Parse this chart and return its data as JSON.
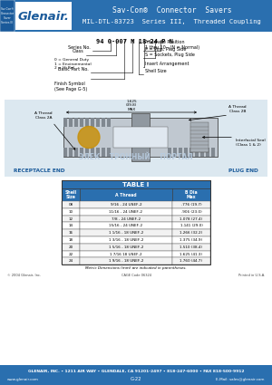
{
  "title_line1": "Sav-Con®  Connector  Savers",
  "title_line2": "MIL-DTL-83723  Series III,  Threaded Coupling",
  "header_bg": "#2a6faf",
  "header_text_color": "#ffffff",
  "sidebar_text": "Sav-Con®\nConnector\nSaver\nSeries III",
  "part_number_example": "94 0-007 M 18-24 P N",
  "table_title": "TABLE I",
  "table_headers": [
    "Shell\nSize",
    "A Thread",
    "B Dia\nMax"
  ],
  "table_rows": [
    [
      "08",
      "9/16 - 24 UNEF-2",
      ".776 (19.7)"
    ],
    [
      "10",
      "11/16 - 24 UNEF-2",
      ".906 (23.0)"
    ],
    [
      "12",
      "7/8 - 24 UNEF-2",
      "1.078 (27.4)"
    ],
    [
      "14",
      "15/16 - 24 UNEF-2",
      "1.141 (29.0)"
    ],
    [
      "16",
      "1 1/16 - 18 UNEF-2",
      "1.266 (32.2)"
    ],
    [
      "18",
      "1 3/16 - 18 UNEF-2",
      "1.375 (34.9)"
    ],
    [
      "20",
      "1 5/16 - 18 UNEF-2",
      "1.510 (38.4)"
    ],
    [
      "22",
      "1 7/16 18 UNEF-2",
      "1.625 (41.3)"
    ],
    [
      "24",
      "1 9/16 - 18 UNEF-2",
      "1.760 (44.7)"
    ]
  ],
  "metric_note": "Metric Dimensions (mm) are indicated in parentheses.",
  "copyright": "© 2004 Glenair, Inc.",
  "cage_code": "CAGE Code 06324",
  "printed": "Printed in U.S.A.",
  "footer_line1": "GLENAIR, INC. • 1211 AIR WAY • GLENDALE, CA 91201-2497 • 818-247-6000 • FAX 818-500-9912",
  "footer_line2_left": "www.glenair.com",
  "footer_line2_center": "G-22",
  "footer_line2_right": "E-Mail: sales@glenair.com",
  "footer_bg": "#2a6faf",
  "table_header_bg": "#2a6faf",
  "body_bg": "#ffffff",
  "watermark_color": "#b8cce0"
}
